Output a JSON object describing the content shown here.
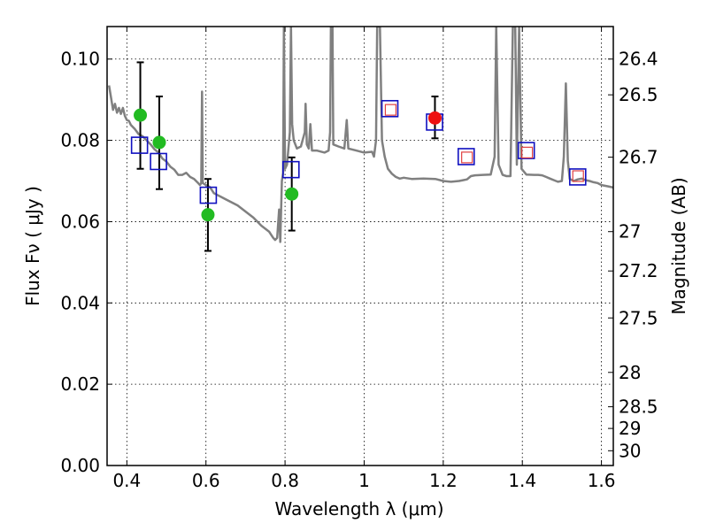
{
  "chart_data": {
    "type": "scatter",
    "xlabel": "Wavelength  λ (μm)",
    "ylabel": "Flux  Fν  ( μJy )",
    "ylabel_right": "Magnitude (AB)",
    "xlim": [
      0.35,
      1.63
    ],
    "ylim": [
      0.0,
      0.108
    ],
    "grid": true,
    "x_ticks": [
      {
        "value": 0.4,
        "label": "0.4"
      },
      {
        "value": 0.6,
        "label": "0.6"
      },
      {
        "value": 0.8,
        "label": "0.8"
      },
      {
        "value": 1.0,
        "label": "1"
      },
      {
        "value": 1.2,
        "label": "1.2"
      },
      {
        "value": 1.4,
        "label": "1.4"
      },
      {
        "value": 1.6,
        "label": "1.6"
      }
    ],
    "y_ticks": [
      {
        "value": 0.0,
        "label": "0.00"
      },
      {
        "value": 0.02,
        "label": "0.02"
      },
      {
        "value": 0.04,
        "label": "0.04"
      },
      {
        "value": 0.06,
        "label": "0.06"
      },
      {
        "value": 0.08,
        "label": "0.08"
      },
      {
        "value": 0.1,
        "label": "0.10"
      }
    ],
    "mag_ticks": [
      {
        "value": 26.4,
        "label": "26.4"
      },
      {
        "value": 26.5,
        "label": "26.5"
      },
      {
        "value": 26.7,
        "label": "26.7"
      },
      {
        "value": 27.0,
        "label": "27"
      },
      {
        "value": 27.2,
        "label": "27.2"
      },
      {
        "value": 27.5,
        "label": "27.5"
      },
      {
        "value": 28.0,
        "label": "28"
      },
      {
        "value": 28.5,
        "label": "28.5"
      },
      {
        "value": 29.0,
        "label": "29"
      },
      {
        "value": 30.0,
        "label": "30"
      }
    ],
    "series": [
      {
        "kind": "model_spectrum",
        "color": "#808080",
        "points": [
          [
            0.355,
            0.0935
          ],
          [
            0.36,
            0.0905
          ],
          [
            0.365,
            0.0875
          ],
          [
            0.37,
            0.089
          ],
          [
            0.375,
            0.0868
          ],
          [
            0.38,
            0.088
          ],
          [
            0.385,
            0.0865
          ],
          [
            0.39,
            0.088
          ],
          [
            0.395,
            0.086
          ],
          [
            0.4,
            0.085
          ],
          [
            0.405,
            0.0848
          ],
          [
            0.41,
            0.0838
          ],
          [
            0.42,
            0.0828
          ],
          [
            0.43,
            0.0815
          ],
          [
            0.44,
            0.081
          ],
          [
            0.45,
            0.08
          ],
          [
            0.46,
            0.079
          ],
          [
            0.47,
            0.0778
          ],
          [
            0.48,
            0.077
          ],
          [
            0.49,
            0.0755
          ],
          [
            0.5,
            0.0748
          ],
          [
            0.51,
            0.0735
          ],
          [
            0.52,
            0.0728
          ],
          [
            0.53,
            0.0715
          ],
          [
            0.54,
            0.0715
          ],
          [
            0.55,
            0.072
          ],
          [
            0.56,
            0.071
          ],
          [
            0.57,
            0.0705
          ],
          [
            0.58,
            0.0695
          ],
          [
            0.585,
            0.069
          ],
          [
            0.588,
            0.0695
          ],
          [
            0.59,
            0.092
          ],
          [
            0.592,
            0.0695
          ],
          [
            0.6,
            0.069
          ],
          [
            0.61,
            0.0685
          ],
          [
            0.62,
            0.067
          ],
          [
            0.64,
            0.066
          ],
          [
            0.66,
            0.065
          ],
          [
            0.68,
            0.064
          ],
          [
            0.7,
            0.0625
          ],
          [
            0.72,
            0.061
          ],
          [
            0.74,
            0.059
          ],
          [
            0.76,
            0.0575
          ],
          [
            0.77,
            0.056
          ],
          [
            0.775,
            0.0555
          ],
          [
            0.78,
            0.056
          ],
          [
            0.785,
            0.063
          ],
          [
            0.788,
            0.055
          ],
          [
            0.792,
            0.07
          ],
          [
            0.795,
            0.072
          ],
          [
            0.797,
            0.108
          ],
          [
            0.8,
            0.073
          ],
          [
            0.805,
            0.074
          ],
          [
            0.812,
            0.082
          ],
          [
            0.815,
            0.108
          ],
          [
            0.818,
            0.084
          ],
          [
            0.822,
            0.08
          ],
          [
            0.83,
            0.078
          ],
          [
            0.84,
            0.0785
          ],
          [
            0.85,
            0.082
          ],
          [
            0.852,
            0.089
          ],
          [
            0.855,
            0.079
          ],
          [
            0.86,
            0.078
          ],
          [
            0.864,
            0.084
          ],
          [
            0.868,
            0.0775
          ],
          [
            0.88,
            0.0775
          ],
          [
            0.9,
            0.077
          ],
          [
            0.91,
            0.0775
          ],
          [
            0.914,
            0.082
          ],
          [
            0.916,
            0.108
          ],
          [
            0.92,
            0.108
          ],
          [
            0.922,
            0.079
          ],
          [
            0.935,
            0.0785
          ],
          [
            0.95,
            0.078
          ],
          [
            0.956,
            0.085
          ],
          [
            0.96,
            0.078
          ],
          [
            0.98,
            0.0775
          ],
          [
            1.0,
            0.077
          ],
          [
            1.02,
            0.0772
          ],
          [
            1.025,
            0.076
          ],
          [
            1.03,
            0.08
          ],
          [
            1.033,
            0.108
          ],
          [
            1.04,
            0.108
          ],
          [
            1.045,
            0.08
          ],
          [
            1.052,
            0.076
          ],
          [
            1.06,
            0.073
          ],
          [
            1.07,
            0.0718
          ],
          [
            1.08,
            0.071
          ],
          [
            1.09,
            0.0706
          ],
          [
            1.1,
            0.0708
          ],
          [
            1.12,
            0.0705
          ],
          [
            1.15,
            0.0706
          ],
          [
            1.18,
            0.0705
          ],
          [
            1.2,
            0.07
          ],
          [
            1.22,
            0.0698
          ],
          [
            1.24,
            0.07
          ],
          [
            1.25,
            0.0702
          ],
          [
            1.26,
            0.0704
          ],
          [
            1.27,
            0.0712
          ],
          [
            1.28,
            0.0714
          ],
          [
            1.3,
            0.0715
          ],
          [
            1.32,
            0.0716
          ],
          [
            1.33,
            0.076
          ],
          [
            1.334,
            0.108
          ],
          [
            1.34,
            0.074
          ],
          [
            1.35,
            0.0715
          ],
          [
            1.36,
            0.0712
          ],
          [
            1.37,
            0.0712
          ],
          [
            1.376,
            0.108
          ],
          [
            1.382,
            0.108
          ],
          [
            1.386,
            0.074
          ],
          [
            1.392,
            0.108
          ],
          [
            1.398,
            0.073
          ],
          [
            1.41,
            0.0716
          ],
          [
            1.43,
            0.0715
          ],
          [
            1.44,
            0.0715
          ],
          [
            1.45,
            0.0714
          ],
          [
            1.46,
            0.071
          ],
          [
            1.47,
            0.0706
          ],
          [
            1.48,
            0.0702
          ],
          [
            1.49,
            0.0698
          ],
          [
            1.5,
            0.07
          ],
          [
            1.505,
            0.076
          ],
          [
            1.51,
            0.094
          ],
          [
            1.515,
            0.075
          ],
          [
            1.52,
            0.0705
          ],
          [
            1.53,
            0.07
          ],
          [
            1.54,
            0.0704
          ],
          [
            1.55,
            0.0706
          ],
          [
            1.56,
            0.0702
          ],
          [
            1.57,
            0.07
          ],
          [
            1.58,
            0.0697
          ],
          [
            1.59,
            0.0695
          ],
          [
            1.6,
            0.069
          ],
          [
            1.61,
            0.0688
          ],
          [
            1.62,
            0.0686
          ],
          [
            1.63,
            0.0684
          ]
        ]
      },
      {
        "kind": "model_photometry",
        "marker": "square",
        "color": "#1010c0",
        "points": [
          [
            0.432,
            0.0788
          ],
          [
            0.48,
            0.0748
          ],
          [
            0.606,
            0.0665
          ],
          [
            0.815,
            0.0728
          ],
          [
            1.065,
            0.0878
          ],
          [
            1.178,
            0.0845
          ],
          [
            1.258,
            0.076
          ],
          [
            1.41,
            0.0775
          ],
          [
            1.54,
            0.071
          ]
        ]
      },
      {
        "kind": "observed_green",
        "marker": "circle",
        "color": "#22bb22",
        "points": [
          {
            "x": 0.434,
            "y": 0.0862,
            "err_low": 0.073,
            "err_high": 0.0992,
            "err_center": 0.0788
          },
          {
            "x": 0.482,
            "y": 0.0795,
            "err_low": 0.068,
            "err_high": 0.0908,
            "err_center": 0.0748
          },
          {
            "x": 0.605,
            "y": 0.0617,
            "err_low": 0.0528,
            "err_high": 0.0705,
            "err_center": 0.0665
          },
          {
            "x": 0.817,
            "y": 0.0668,
            "err_low": 0.0578,
            "err_high": 0.0758,
            "err_center": 0.0728
          }
        ]
      },
      {
        "kind": "observed_red",
        "marker": "circle",
        "color": "#ee1111",
        "points": [
          {
            "x": 1.179,
            "y": 0.0855,
            "err_low": 0.0805,
            "err_high": 0.0908,
            "err_center": 0.0855
          }
        ]
      },
      {
        "kind": "small_red_squares",
        "marker": "square",
        "color": "#e04040",
        "points": [
          [
            1.067,
            0.0875
          ],
          [
            1.26,
            0.0758
          ],
          [
            1.412,
            0.077
          ],
          [
            1.541,
            0.0712
          ]
        ]
      }
    ]
  }
}
